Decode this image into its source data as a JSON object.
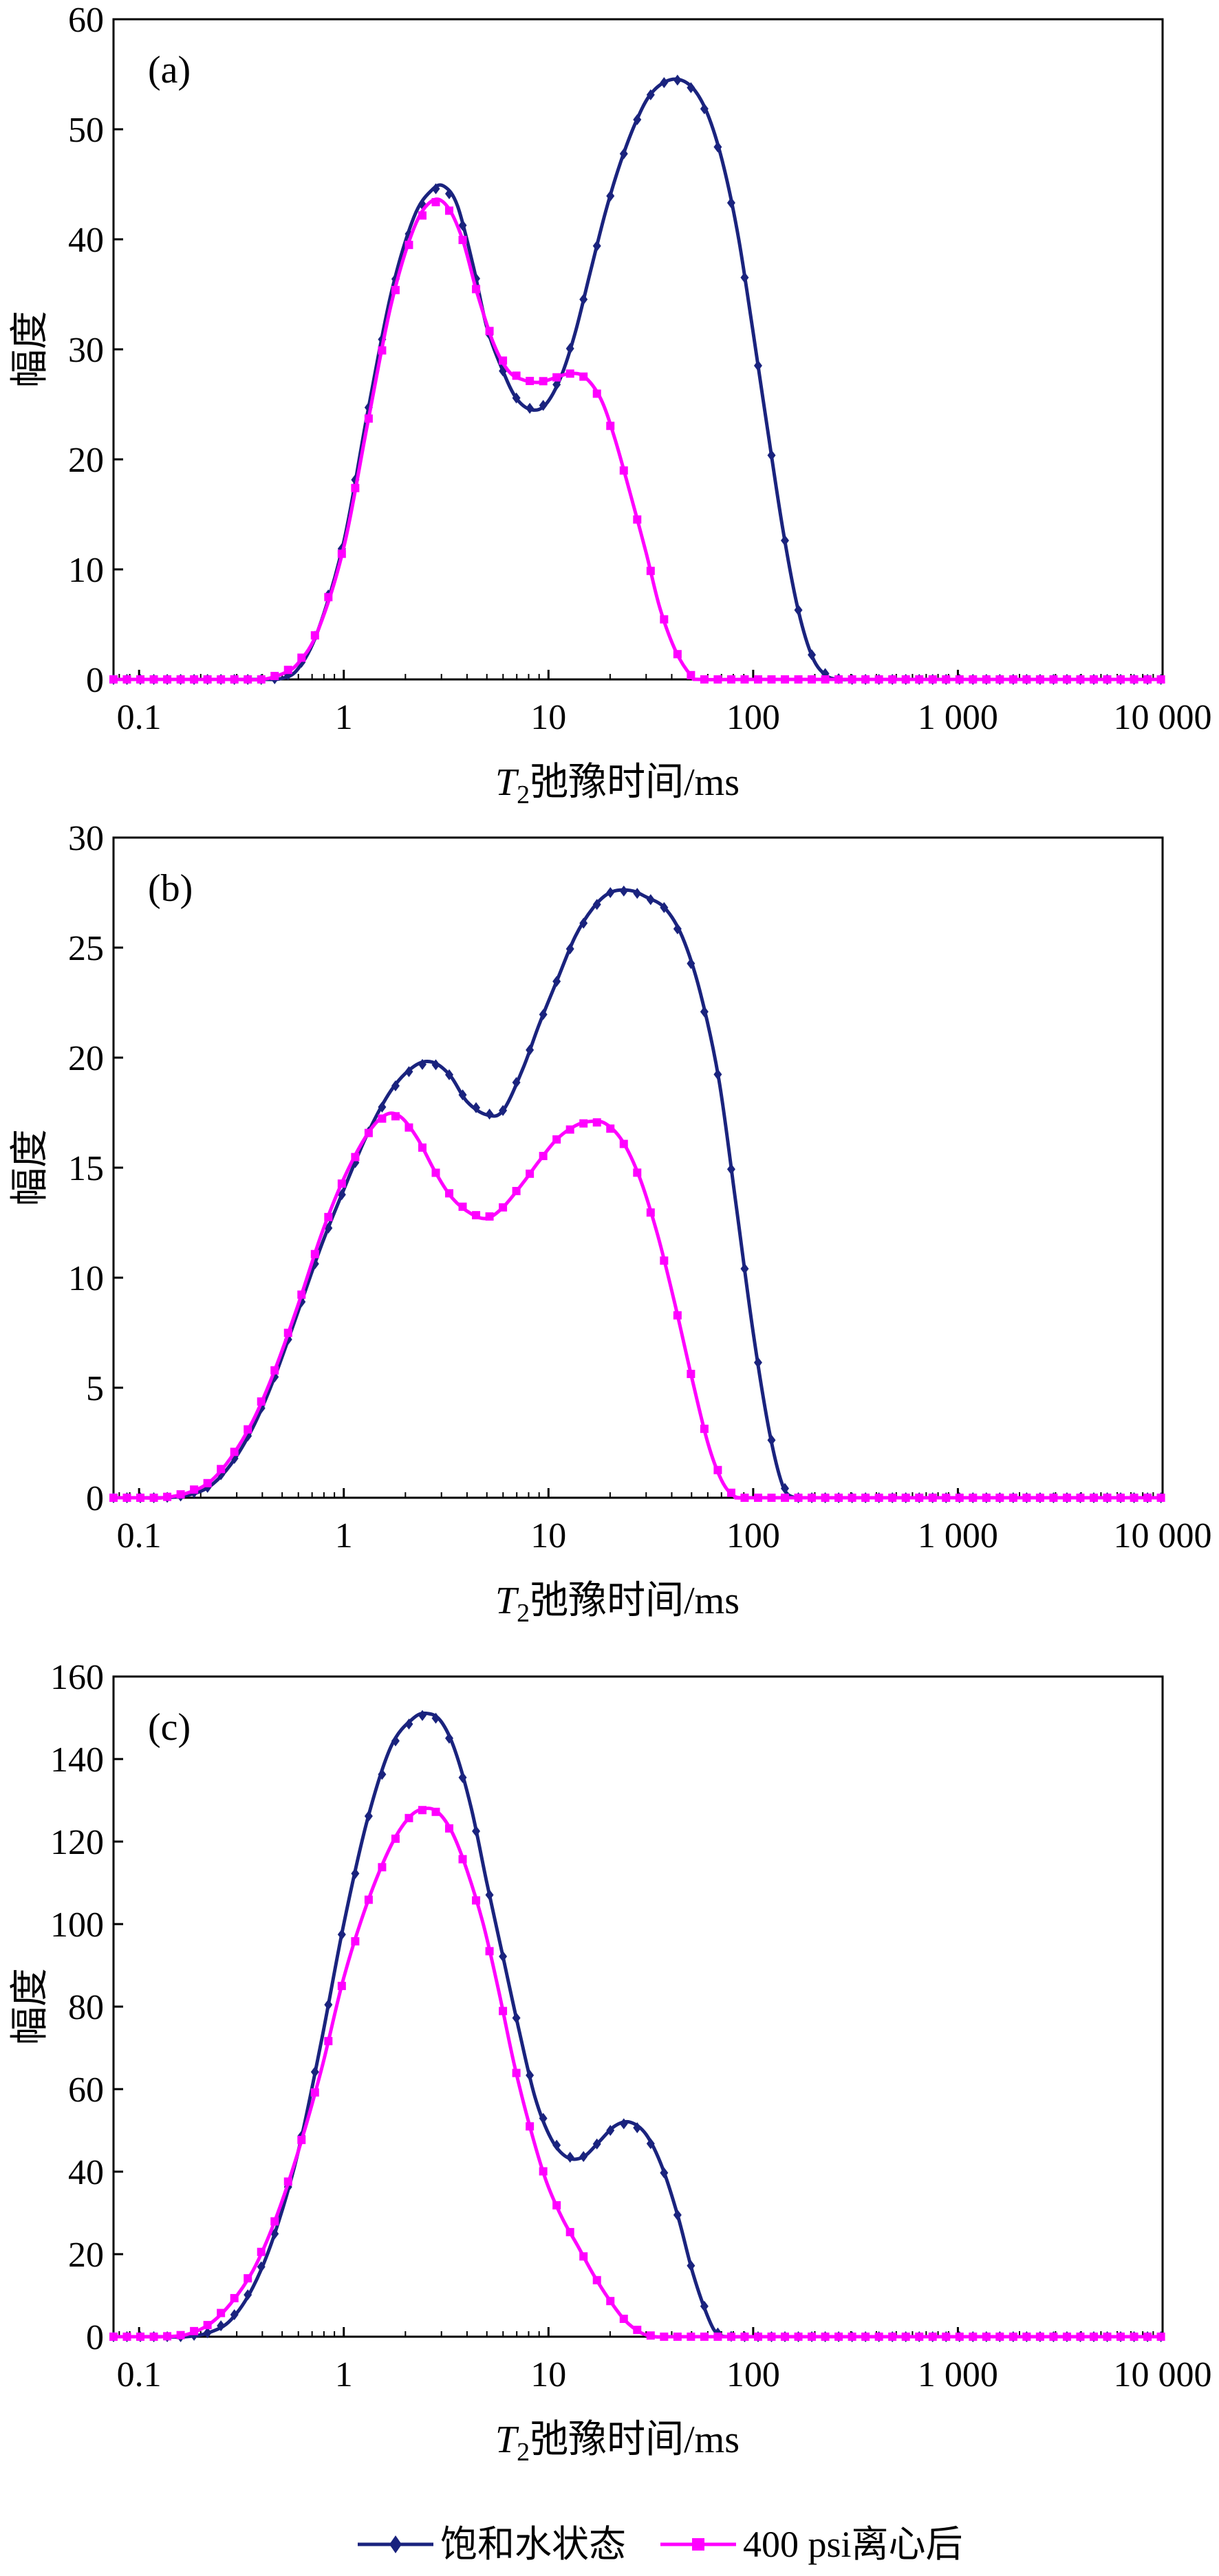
{
  "chart_data": [
    {
      "type": "line",
      "panel_label": "(a)",
      "xlabel": {
        "main": "T",
        "sub": "2",
        "rest": "弛豫时间/ms"
      },
      "ylabel": "幅度",
      "xscale": "log",
      "xlim": [
        0.075,
        10000
      ],
      "ylim": [
        0,
        60
      ],
      "yticks": [
        "0",
        "10",
        "20",
        "30",
        "40",
        "50",
        "60"
      ],
      "xticks": [
        {
          "v": 0.1,
          "t": "0.1"
        },
        {
          "v": 1,
          "t": "1"
        },
        {
          "v": 10,
          "t": "10"
        },
        {
          "v": 100,
          "t": "100"
        },
        {
          "v": 1000,
          "t": "1 000"
        },
        {
          "v": 10000,
          "t": "10 000"
        }
      ],
      "series": [
        {
          "name": "饱和水状态",
          "color": "#1a237e",
          "marker": "diamond",
          "x": [
            0.075,
            0.1,
            0.2,
            0.3,
            0.4,
            0.5,
            0.6,
            0.75,
            1.0,
            1.3,
            1.7,
            2.2,
            2.7,
            3.1,
            3.6,
            4.3,
            5.0,
            6.0,
            7.0,
            8.3,
            9.7,
            11.5,
            13.5,
            16,
            19,
            22.5,
            26.5,
            31,
            37,
            44,
            52,
            61,
            72,
            85,
            100,
            118,
            140,
            165,
            195,
            230,
            270,
            300,
            400,
            1000,
            10000
          ],
          "y": [
            0,
            0,
            0,
            0,
            0,
            0.1,
            1.0,
            4.5,
            12.5,
            24.0,
            35.0,
            42.0,
            44.5,
            44.8,
            43.0,
            37.5,
            32.0,
            28.0,
            25.5,
            24.5,
            25.0,
            27.5,
            31.5,
            37.0,
            42.5,
            47.0,
            50.5,
            53.0,
            54.3,
            54.5,
            53.5,
            51.0,
            46.5,
            40.0,
            31.5,
            22.5,
            13.5,
            6.5,
            2.0,
            0.3,
            0,
            0,
            0,
            0,
            0
          ]
        },
        {
          "name": "400 psi离心后",
          "color": "#ff00ff",
          "marker": "square",
          "x": [
            0.075,
            0.1,
            0.2,
            0.3,
            0.4,
            0.5,
            0.6,
            0.75,
            1.0,
            1.3,
            1.7,
            2.2,
            2.7,
            3.2,
            3.8,
            4.5,
            5.4,
            6.4,
            7.6,
            9.0,
            10.7,
            12.7,
            15,
            18,
            21,
            25,
            30,
            35,
            42,
            50,
            55,
            100,
            1000,
            10000
          ],
          "y": [
            0,
            0,
            0,
            0,
            0,
            0.5,
            1.5,
            4.5,
            12.0,
            23.0,
            34.0,
            41.0,
            43.5,
            43.0,
            40.0,
            35.0,
            30.5,
            28.0,
            27.2,
            27.0,
            27.4,
            27.8,
            27.5,
            25.5,
            22.0,
            17.0,
            11.5,
            6.5,
            2.5,
            0.3,
            0,
            0,
            0,
            0
          ]
        }
      ]
    },
    {
      "type": "line",
      "panel_label": "(b)",
      "xlabel": {
        "main": "T",
        "sub": "2",
        "rest": "弛豫时间/ms"
      },
      "ylabel": "幅度",
      "xscale": "log",
      "xlim": [
        0.075,
        10000
      ],
      "ylim": [
        0,
        30
      ],
      "yticks": [
        "0",
        "5",
        "10",
        "15",
        "20",
        "25",
        "30"
      ],
      "xticks": [
        {
          "v": 0.1,
          "t": "0.1"
        },
        {
          "v": 1,
          "t": "1"
        },
        {
          "v": 10,
          "t": "10"
        },
        {
          "v": 100,
          "t": "100"
        },
        {
          "v": 1000,
          "t": "1 000"
        },
        {
          "v": 10000,
          "t": "10 000"
        }
      ],
      "series": [
        {
          "name": "饱和水状态",
          "color": "#1a237e",
          "marker": "diamond",
          "x": [
            0.075,
            0.1,
            0.13,
            0.17,
            0.22,
            0.28,
            0.36,
            0.46,
            0.6,
            0.78,
            1.0,
            1.3,
            1.7,
            2.2,
            2.7,
            3.3,
            4.0,
            5.0,
            6.0,
            7.5,
            9.0,
            11,
            13.5,
            16.5,
            20,
            25,
            30,
            37,
            45,
            55,
            68,
            82,
            100,
            120,
            140,
            160,
            170,
            200,
            1000,
            10000
          ],
          "y": [
            0,
            0,
            0,
            0.1,
            0.5,
            1.5,
            3.2,
            5.5,
            8.5,
            11.5,
            14.0,
            16.5,
            18.5,
            19.6,
            19.8,
            19.2,
            18.0,
            17.4,
            17.6,
            19.5,
            21.5,
            23.5,
            25.5,
            26.8,
            27.5,
            27.6,
            27.3,
            26.8,
            25.5,
            23.0,
            19.0,
            13.5,
            7.5,
            3.0,
            0.5,
            0,
            0,
            0,
            0,
            0
          ]
        },
        {
          "name": "400 psi离心后",
          "color": "#ff00ff",
          "marker": "square",
          "x": [
            0.075,
            0.1,
            0.13,
            0.17,
            0.22,
            0.28,
            0.36,
            0.46,
            0.6,
            0.78,
            1.0,
            1.3,
            1.6,
            1.9,
            2.3,
            2.8,
            3.4,
            4.2,
            5.0,
            6.0,
            7.5,
            9.0,
            11,
            13.5,
            16,
            19,
            23,
            28,
            34,
            41,
            50,
            60,
            70,
            80,
            90,
            100,
            1000,
            10000
          ],
          "y": [
            0,
            0,
            0,
            0.2,
            0.7,
            1.8,
            3.5,
            5.8,
            8.8,
            12.0,
            14.5,
            16.5,
            17.4,
            17.3,
            16.3,
            14.8,
            13.6,
            12.9,
            12.7,
            13.2,
            14.3,
            15.3,
            16.3,
            16.9,
            17.1,
            17.0,
            16.2,
            14.5,
            12.0,
            9.0,
            5.5,
            2.5,
            0.8,
            0.1,
            0,
            0,
            0,
            0
          ]
        }
      ]
    },
    {
      "type": "line",
      "panel_label": "(c)",
      "xlabel": {
        "main": "T",
        "sub": "2",
        "rest": "弛豫时间/ms"
      },
      "ylabel": "幅度",
      "xscale": "log",
      "xlim": [
        0.075,
        10000
      ],
      "ylim": [
        0,
        160
      ],
      "yticks": [
        "0",
        "20",
        "40",
        "60",
        "80",
        "100",
        "120",
        "140",
        "160"
      ],
      "xticks": [
        {
          "v": 0.1,
          "t": "0.1"
        },
        {
          "v": 1,
          "t": "1"
        },
        {
          "v": 10,
          "t": "10"
        },
        {
          "v": 100,
          "t": "100"
        },
        {
          "v": 1000,
          "t": "1 000"
        },
        {
          "v": 10000,
          "t": "10 000"
        }
      ],
      "series": [
        {
          "name": "饱和水状态",
          "color": "#1a237e",
          "marker": "diamond",
          "x": [
            0.075,
            0.1,
            0.13,
            0.17,
            0.22,
            0.28,
            0.36,
            0.46,
            0.6,
            0.78,
            1.0,
            1.3,
            1.7,
            2.2,
            2.6,
            3.0,
            3.5,
            4.2,
            5.0,
            6.0,
            7.2,
            8.6,
            10.3,
            12.3,
            14.7,
            17.5,
            21,
            25,
            30,
            36,
            43,
            51,
            61,
            68,
            80,
            100,
            1000,
            10000
          ],
          "y": [
            0,
            0,
            0,
            0,
            1,
            4,
            12,
            25,
            45,
            72,
            100,
            125,
            143,
            150,
            151,
            149,
            142,
            128,
            110,
            92,
            74,
            58,
            48,
            43.5,
            43.5,
            47,
            51,
            52,
            49,
            41,
            29,
            15,
            4,
            0.5,
            0,
            0,
            0,
            0
          ]
        },
        {
          "name": "400 psi离心后",
          "color": "#ff00ff",
          "marker": "square",
          "x": [
            0.075,
            0.1,
            0.13,
            0.17,
            0.22,
            0.28,
            0.36,
            0.46,
            0.6,
            0.78,
            1.0,
            1.3,
            1.7,
            2.1,
            2.5,
            2.9,
            3.4,
            4.0,
            4.8,
            5.7,
            6.8,
            8.1,
            9.7,
            11.6,
            13.9,
            16.6,
            19.8,
            23.6,
            28.2,
            33,
            40,
            50,
            100,
            1000,
            10000
          ],
          "y": [
            0,
            0,
            0,
            0.5,
            3,
            8,
            16,
            28,
            45,
            65,
            87,
            105,
            119,
            126,
            128,
            127,
            122,
            113,
            100,
            84,
            66,
            51,
            38,
            29,
            22,
            15,
            9,
            4,
            1,
            0,
            0,
            0,
            0,
            0,
            0
          ]
        }
      ]
    }
  ],
  "legend": [
    {
      "label": "饱和水状态",
      "color": "#1a237e",
      "marker": "diamond"
    },
    {
      "label": "400 psi离心后",
      "color": "#ff00ff",
      "marker": "square"
    }
  ]
}
